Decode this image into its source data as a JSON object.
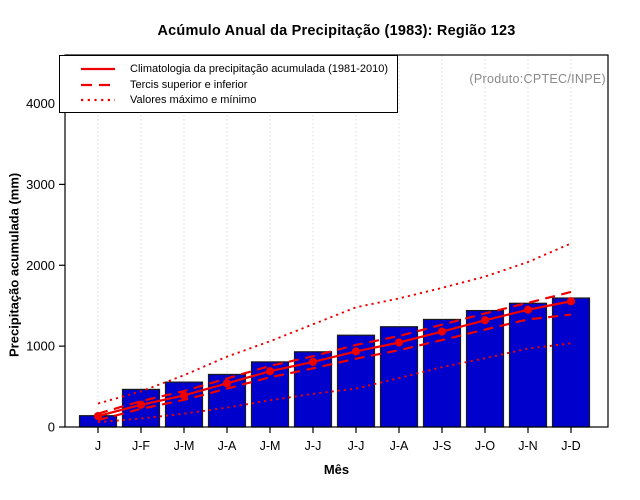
{
  "title": "Acúmulo Anual da Precipitação (1983): Região 123",
  "note": "(Produto:CPTEC/INPE)",
  "legend": {
    "items": [
      {
        "style": "solid",
        "label": "Climatologia da precipitação acumulada (1981-2010)"
      },
      {
        "style": "dashed",
        "label": "Tercis superior e inferior"
      },
      {
        "style": "dotted",
        "label": "Valores máximo e mínimo"
      }
    ]
  },
  "chart_data": {
    "type": "bar",
    "title": "Acúmulo Anual da Precipitação (1983): Região 123",
    "xlabel": "Mês",
    "ylabel": "Precipitação acumulada (mm)",
    "categories": [
      "J",
      "J-F",
      "J-M",
      "J-A",
      "J-M",
      "J-J",
      "J-J",
      "J-A",
      "J-S",
      "J-O",
      "J-N",
      "J-D"
    ],
    "bar_values": [
      140,
      465,
      555,
      650,
      805,
      930,
      1135,
      1240,
      1330,
      1440,
      1530,
      1595
    ],
    "series": [
      {
        "id": "climatologia",
        "legend": "Climatologia da precipitação acumulada (1981-2010)",
        "style": "solid",
        "markers": true,
        "values": [
          135,
          275,
          390,
          540,
          690,
          805,
          935,
          1045,
          1180,
          1320,
          1450,
          1555
        ]
      },
      {
        "id": "tercil-superior",
        "legend": "Tercis superior e inferior",
        "style": "dashed",
        "markers": false,
        "values": [
          165,
          320,
          445,
          600,
          755,
          875,
          1015,
          1125,
          1265,
          1405,
          1535,
          1670
        ]
      },
      {
        "id": "tercil-inferior",
        "legend": "Tercis superior e inferior",
        "style": "dashed",
        "markers": false,
        "values": [
          85,
          225,
          335,
          475,
          615,
          725,
          845,
          950,
          1075,
          1205,
          1330,
          1390
        ]
      },
      {
        "id": "maximo",
        "legend": "Valores máximo e mínimo",
        "style": "dotted",
        "markers": false,
        "values": [
          290,
          440,
          640,
          870,
          1060,
          1270,
          1480,
          1590,
          1720,
          1860,
          2040,
          2270
        ]
      },
      {
        "id": "minimo",
        "legend": "Valores máximo e mínimo",
        "style": "dotted",
        "markers": false,
        "values": [
          60,
          105,
          165,
          240,
          330,
          410,
          475,
          605,
          740,
          850,
          970,
          1035
        ]
      }
    ],
    "y_ticks": [
      0,
      1000,
      2000,
      3000,
      4000
    ],
    "ylim": [
      0,
      4600
    ],
    "grid": "vertical-dotted",
    "legend_position": "top-left",
    "colors": {
      "bar_fill": "#0000CD",
      "bar_border": "#1a1a1a",
      "line": "#EE0000",
      "grid": "#DCDCDC",
      "axis": "#000000",
      "note_text": "#8a8a8a"
    }
  }
}
